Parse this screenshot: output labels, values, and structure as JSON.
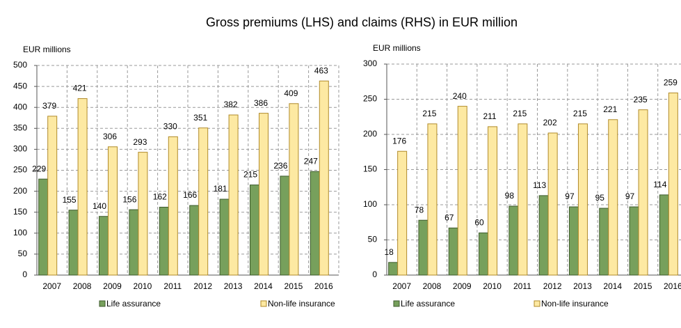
{
  "title": "Gross premiums (LHS) and claims (RHS) in EUR million",
  "chart_data": [
    {
      "type": "bar",
      "ylabel": "EUR millions",
      "categories": [
        "2007",
        "2008",
        "2009",
        "2010",
        "2011",
        "2012",
        "2013",
        "2014",
        "2015",
        "2016"
      ],
      "series": [
        {
          "name": "Life assurance",
          "color": "#77a05c",
          "values": [
            229,
            155,
            140,
            156,
            162,
            166,
            181,
            215,
            236,
            247
          ]
        },
        {
          "name": "Non-life insurance",
          "color": "#fde9a2",
          "values": [
            379,
            421,
            306,
            293,
            330,
            351,
            382,
            386,
            409,
            463
          ]
        }
      ],
      "ylim": [
        0,
        500
      ],
      "yticks": [
        0,
        50,
        100,
        150,
        200,
        250,
        300,
        350,
        400,
        450,
        500
      ],
      "grid": true
    },
    {
      "type": "bar",
      "ylabel": "EUR millions",
      "categories": [
        "2007",
        "2008",
        "2009",
        "2010",
        "2011",
        "2012",
        "2013",
        "2014",
        "2015",
        "2016"
      ],
      "series": [
        {
          "name": "Life assurance",
          "color": "#77a05c",
          "values": [
            18,
            78,
            67,
            60,
            98,
            113,
            97,
            95,
            97,
            114
          ]
        },
        {
          "name": "Non-life insurance",
          "color": "#fde9a2",
          "values": [
            176,
            215,
            240,
            211,
            215,
            202,
            215,
            221,
            235,
            259
          ]
        }
      ],
      "ylim": [
        0,
        300
      ],
      "yticks": [
        0,
        50,
        100,
        150,
        200,
        250,
        300
      ],
      "grid": true
    }
  ]
}
